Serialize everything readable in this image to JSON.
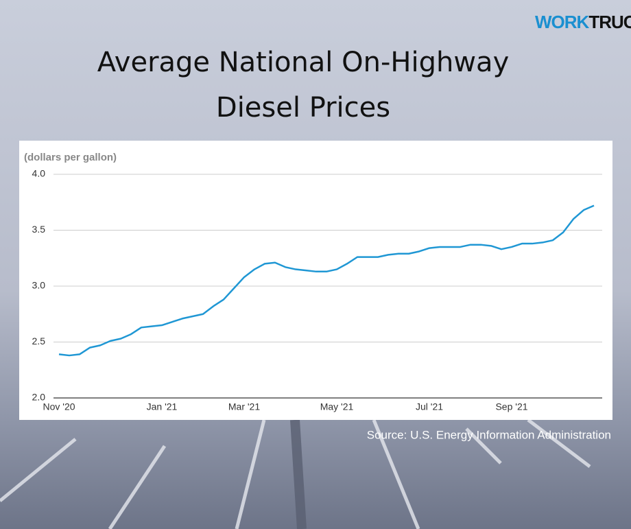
{
  "chart_data": {
    "type": "line",
    "title": "Average National On-Highway Diesel Prices",
    "y_label": "(dollars per gallon)",
    "source": "Source: U.S. Energy Information Administration",
    "brand": [
      "WORK",
      "TRUCK"
    ],
    "color": "#1f97d4",
    "categories": [
      "Nov '20",
      null,
      null,
      null,
      null,
      null,
      null,
      null,
      null,
      null,
      "Jan '21",
      null,
      null,
      null,
      null,
      null,
      null,
      null,
      "Mar '21",
      null,
      null,
      null,
      null,
      null,
      null,
      null,
      null,
      "May '21",
      null,
      null,
      null,
      null,
      null,
      null,
      null,
      null,
      "Jul '21",
      null,
      null,
      null,
      null,
      null,
      null,
      null,
      "Sep '21",
      null,
      null,
      null,
      null,
      null,
      null,
      null,
      null
    ],
    "values": [
      2.39,
      2.38,
      2.39,
      2.45,
      2.47,
      2.51,
      2.53,
      2.57,
      2.63,
      2.64,
      2.65,
      2.68,
      2.71,
      2.73,
      2.75,
      2.82,
      2.88,
      2.98,
      3.08,
      3.15,
      3.2,
      3.21,
      3.17,
      3.15,
      3.14,
      3.13,
      3.13,
      3.15,
      3.2,
      3.26,
      3.26,
      3.26,
      3.28,
      3.29,
      3.29,
      3.31,
      3.34,
      3.35,
      3.35,
      3.35,
      3.37,
      3.37,
      3.36,
      3.33,
      3.35,
      3.38,
      3.38,
      3.39,
      3.41,
      3.48,
      3.6,
      3.68,
      3.72
    ],
    "ylim": [
      2,
      4
    ],
    "yticks": [
      {
        "value": 2,
        "label": "2.0"
      },
      2.5,
      {
        "value": 3,
        "label": "3.0"
      },
      3.5,
      {
        "value": 4,
        "label": "4.0"
      }
    ],
    "grid": true
  }
}
